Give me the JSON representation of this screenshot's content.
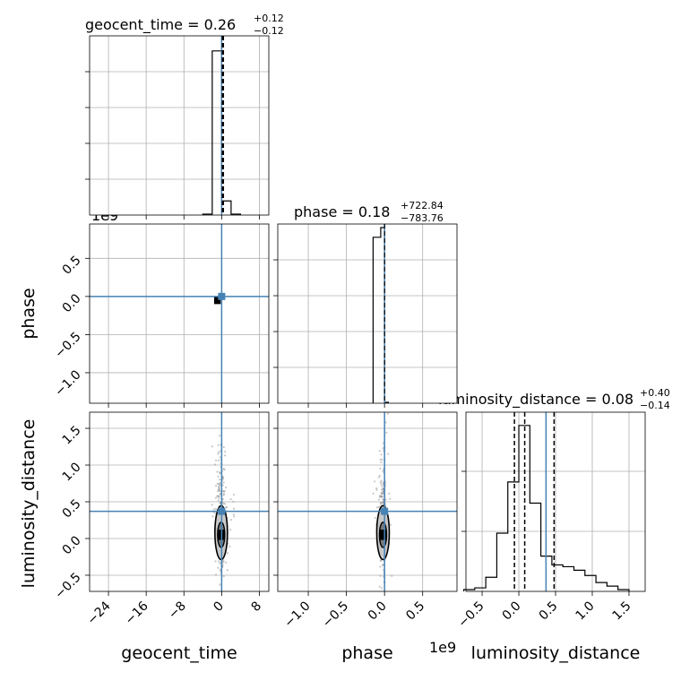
{
  "chart_data": {
    "type": "corner",
    "parameters": [
      "geocent_time",
      "phase",
      "luminosity_distance"
    ],
    "axis_labels": {
      "x": [
        "geocent_time",
        "phase",
        "luminosity_distance"
      ],
      "y": [
        "phase",
        "luminosity_distance"
      ]
    },
    "titles": [
      {
        "text": "geocent_time = 0.26",
        "plus": "+0.12",
        "minus": "−0.12"
      },
      {
        "text": "phase = 0.18",
        "plus": "+722.84",
        "minus": "−783.76"
      },
      {
        "text": "luminosity_distance = 0.08",
        "plus": "+0.40",
        "minus": "−0.14"
      }
    ],
    "offset_labels": {
      "phase_y": "1e9",
      "phase_x": "1e9",
      "geocent_top": "1e9"
    },
    "ticks": {
      "geocent_time": {
        "values": [
          -24,
          -16,
          -8,
          0,
          8
        ],
        "labels": [
          "−24",
          "−16",
          "−8",
          "0",
          "8"
        ],
        "range": [
          -28,
          10
        ]
      },
      "phase": {
        "values": [
          -1.0,
          -0.5,
          0.0,
          0.5
        ],
        "labels": [
          "−1.0",
          "−0.5",
          "0.0",
          "0.5"
        ],
        "range": [
          -1.4,
          0.95
        ]
      },
      "luminosity_distance": {
        "values": [
          -0.5,
          0.0,
          0.5,
          1.0,
          1.5
        ],
        "labels": [
          "−0.5",
          "0.0",
          "0.5",
          "1.0",
          "1.5"
        ],
        "range": [
          -0.72,
          1.72
        ]
      }
    },
    "truths": {
      "geocent_time": 0.0,
      "phase": 0.0,
      "luminosity_distance": 0.37
    },
    "colors": {
      "truth": "#4682b4",
      "hist": "#000000",
      "grid": "#b0b0b0",
      "points": "#9a9a9a"
    },
    "hist_geocent_time": {
      "edges": [
        -4,
        -2,
        0,
        2,
        4
      ],
      "counts": [
        0.005,
        0.93,
        0.08,
        0.005
      ]
    },
    "hist_phase": {
      "edges": [
        -0.15,
        -0.05,
        0.0,
        0.05
      ],
      "counts": [
        0.94,
        0.995,
        0.005
      ]
    },
    "hist_luminosity_distance": {
      "edges": [
        -0.75,
        -0.6,
        -0.45,
        -0.3,
        -0.15,
        0.0,
        0.15,
        0.3,
        0.45,
        0.6,
        0.75,
        0.9,
        1.05,
        1.2,
        1.35,
        1.5
      ],
      "counts": [
        0.01,
        0.02,
        0.08,
        0.33,
        0.62,
        0.94,
        0.5,
        0.2,
        0.15,
        0.14,
        0.12,
        0.09,
        0.05,
        0.03,
        0.01
      ]
    },
    "quantiles": {
      "luminosity_distance": [
        -0.06,
        0.08,
        0.48
      ]
    },
    "grid": true
  }
}
